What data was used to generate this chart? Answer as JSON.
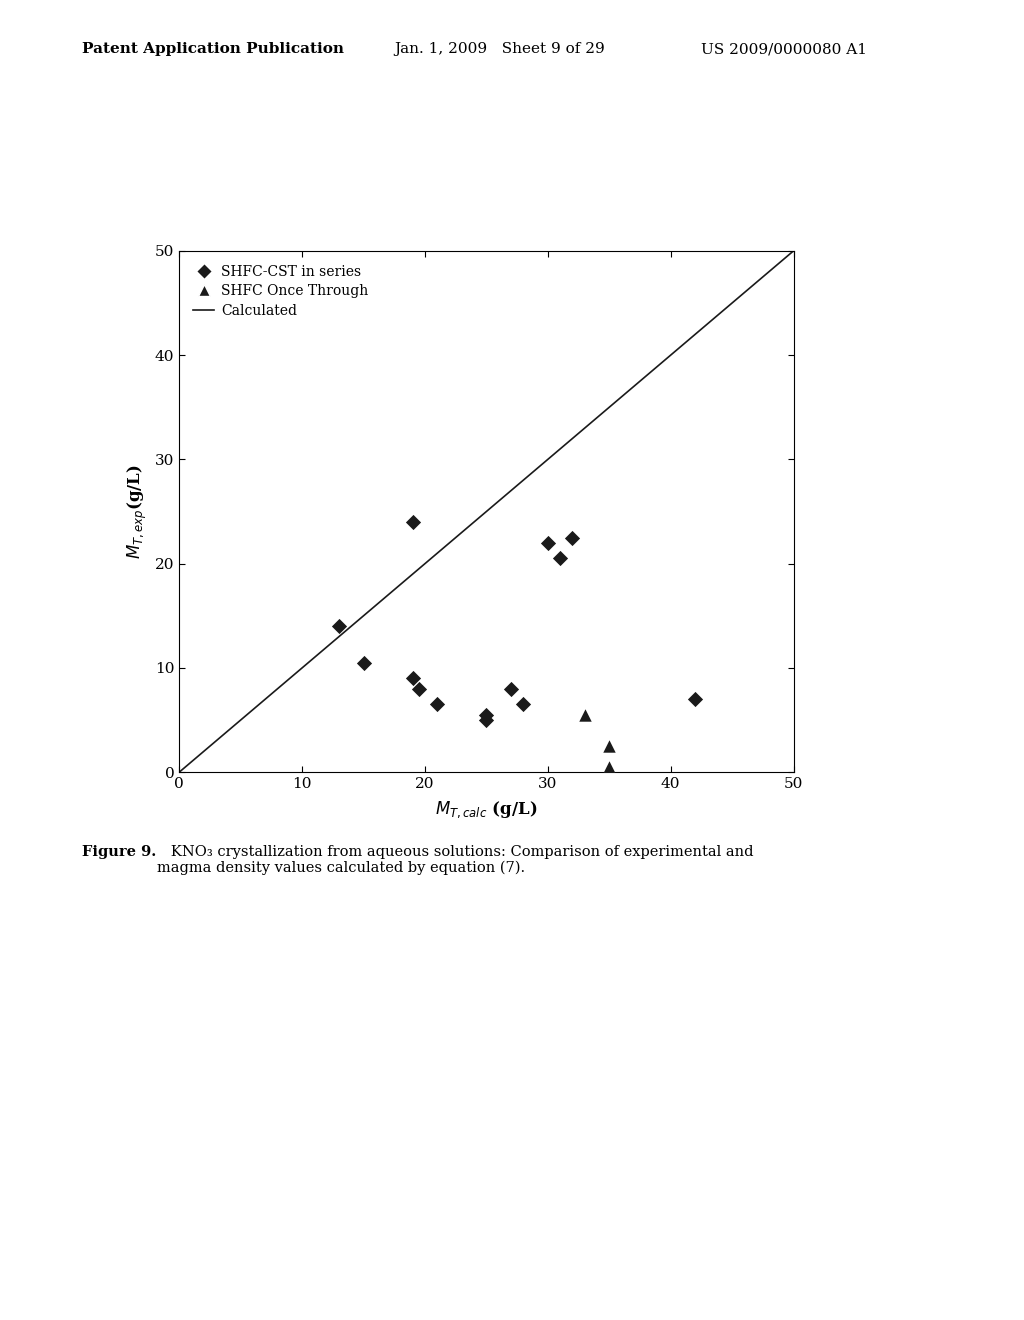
{
  "diamond_points": [
    [
      13,
      14
    ],
    [
      15,
      10.5
    ],
    [
      19,
      24
    ],
    [
      19,
      9
    ],
    [
      19.5,
      8
    ],
    [
      21,
      6.5
    ],
    [
      25,
      5.5
    ],
    [
      25,
      5
    ],
    [
      27,
      8
    ],
    [
      28,
      6.5
    ],
    [
      30,
      22
    ],
    [
      31,
      20.5
    ],
    [
      32,
      22.5
    ],
    [
      42,
      7
    ]
  ],
  "triangle_points": [
    [
      33,
      5.5
    ],
    [
      35,
      2.5
    ],
    [
      35,
      0.5
    ]
  ],
  "line_x": [
    0,
    50
  ],
  "line_y": [
    0,
    50
  ],
  "xlabel": "$M_{T,calc}$ (g/L)",
  "ylabel": "$M_{T,exp}$(g/L)",
  "xlim": [
    0,
    50
  ],
  "ylim": [
    0,
    50
  ],
  "xticks": [
    0,
    10,
    20,
    30,
    40,
    50
  ],
  "yticks": [
    0,
    10,
    20,
    30,
    40,
    50
  ],
  "legend_labels": [
    "SHFC-CST in series",
    "SHFC Once Through",
    "Calculated"
  ],
  "caption_bold": "Figure 9.",
  "caption_normal": "   KNO₃ crystallization from aqueous solutions: Comparison of experimental and\nmagma density values calculated by equation (7).",
  "header_left": "Patent Application Publication",
  "header_mid": "Jan. 1, 2009   Sheet 9 of 29",
  "header_right": "US 2009/0000080 A1",
  "bg_color": "#ffffff",
  "marker_color": "#1a1a1a",
  "line_color": "#1a1a1a",
  "diamond_size": 60,
  "triangle_size": 80
}
